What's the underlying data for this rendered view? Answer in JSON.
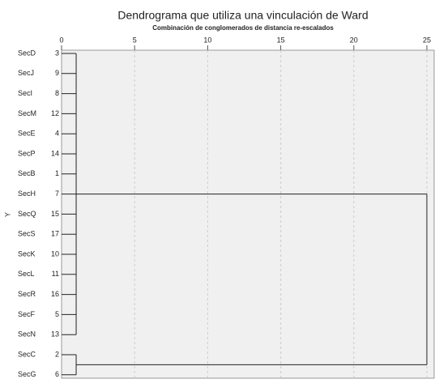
{
  "chart_data": {
    "type": "dendrogram",
    "title": "Dendrograma que utiliza una vinculación de Ward",
    "subtitle": "Combinación de conglomerados de distancia re-escalados",
    "y_label": "Y",
    "leaves": [
      "SecD",
      "SecJ",
      "SecI",
      "SecM",
      "SecE",
      "SecP",
      "SecB",
      "SecH",
      "SecQ",
      "SecS",
      "SecK",
      "SecL",
      "SecR",
      "SecF",
      "SecN",
      "SecC",
      "SecG"
    ],
    "case_numbers": [
      3,
      9,
      8,
      12,
      4,
      14,
      1,
      7,
      15,
      17,
      10,
      11,
      16,
      5,
      13,
      2,
      6
    ],
    "merges": [
      {
        "leaves": [
          0,
          1,
          2,
          3,
          4,
          5,
          6,
          7,
          8,
          9,
          10,
          11,
          12,
          13,
          14
        ],
        "distance": 1
      },
      {
        "leaves": [
          15,
          16
        ],
        "distance": 1
      },
      {
        "clusters": [
          0,
          1
        ],
        "distance": 25
      }
    ],
    "xlim": [
      0,
      25
    ],
    "xticks": [
      0,
      5,
      10,
      15,
      20,
      25
    ],
    "grid": true
  }
}
